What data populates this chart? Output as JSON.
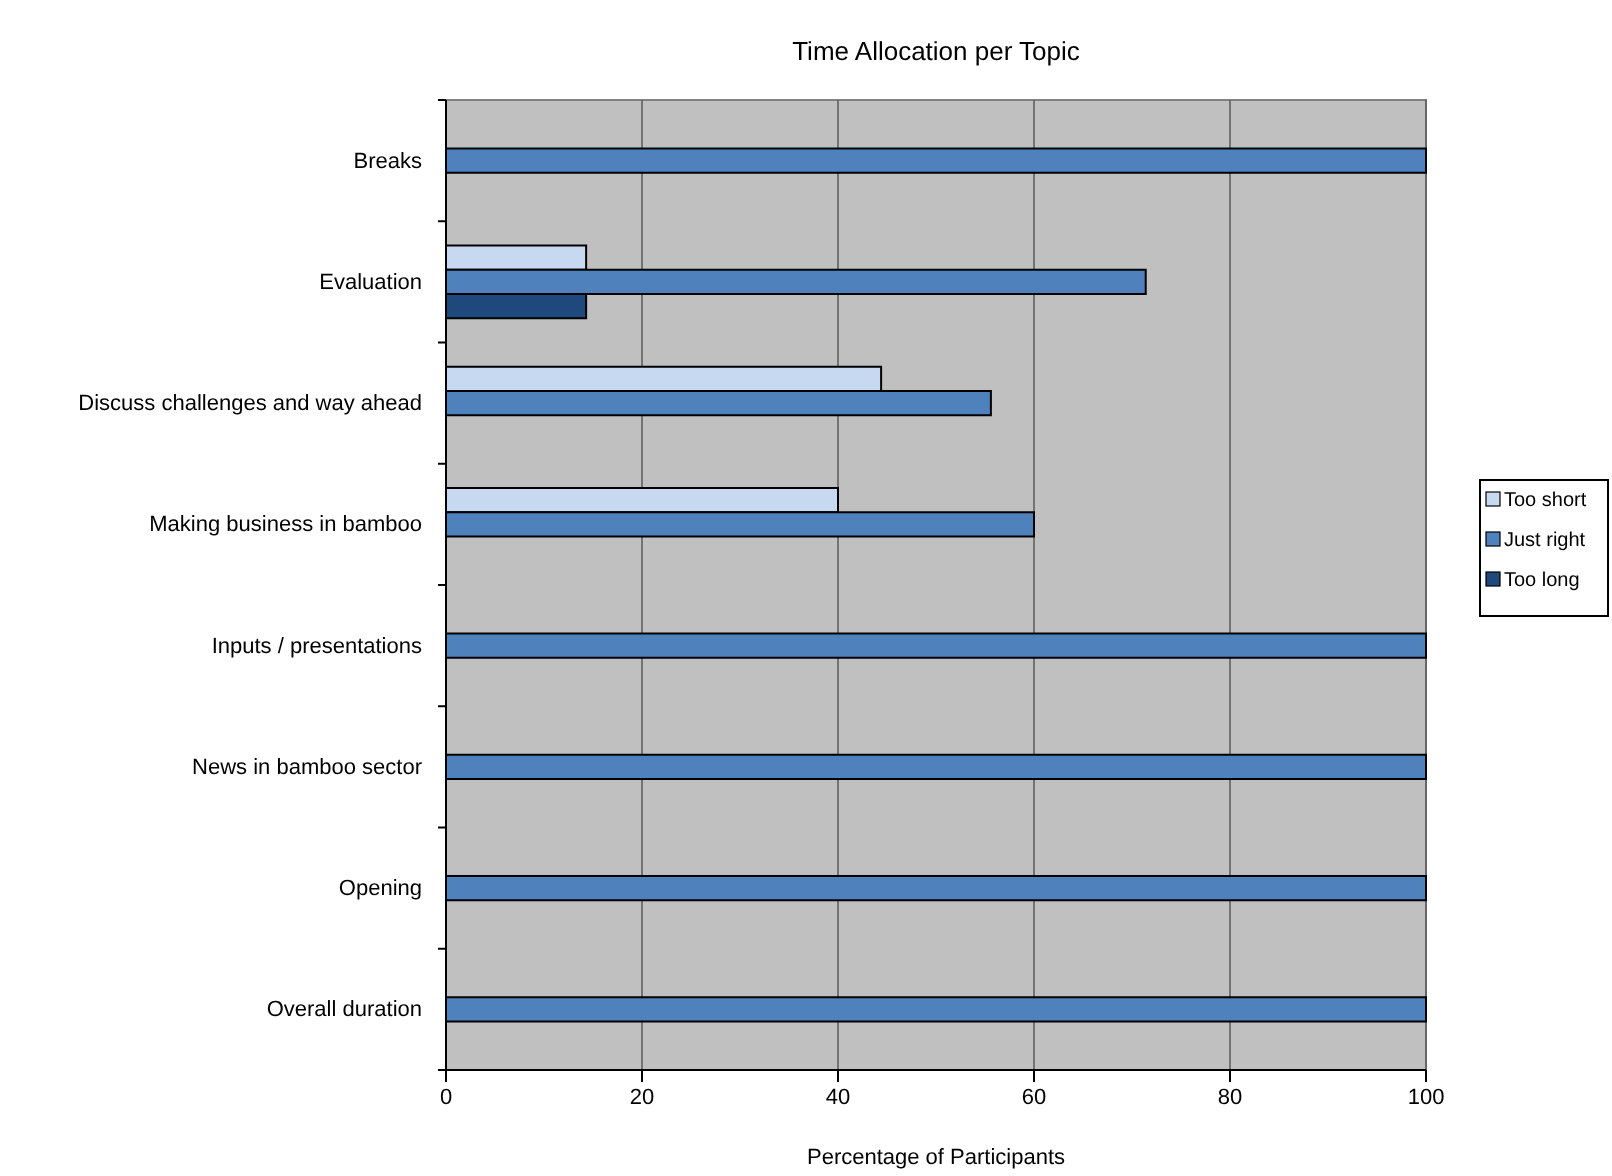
{
  "chart_data": {
    "type": "bar",
    "orientation": "horizontal",
    "title": "Time Allocation per Topic",
    "xlabel": "Percentage of Participants",
    "categories": [
      "Breaks",
      "Evaluation",
      "Discuss challenges and way ahead",
      "Making business in bamboo",
      "Inputs / presentations",
      "News in bamboo sector",
      "Opening",
      "Overall duration"
    ],
    "series": [
      {
        "name": "Too short",
        "color": "#c6d9f0",
        "values": [
          null,
          14.3,
          44.4,
          40,
          null,
          null,
          null,
          null
        ]
      },
      {
        "name": "Just right",
        "color": "#4f81bd",
        "values": [
          100,
          71.4,
          55.6,
          60,
          100,
          100,
          100,
          100
        ]
      },
      {
        "name": "Too long",
        "color": "#1f497d",
        "values": [
          null,
          14.3,
          null,
          null,
          null,
          null,
          null,
          null
        ]
      }
    ],
    "xlim": [
      0,
      100
    ],
    "xticks": [
      0,
      20,
      40,
      60,
      80,
      100
    ],
    "grid": "x",
    "legend": "right"
  }
}
